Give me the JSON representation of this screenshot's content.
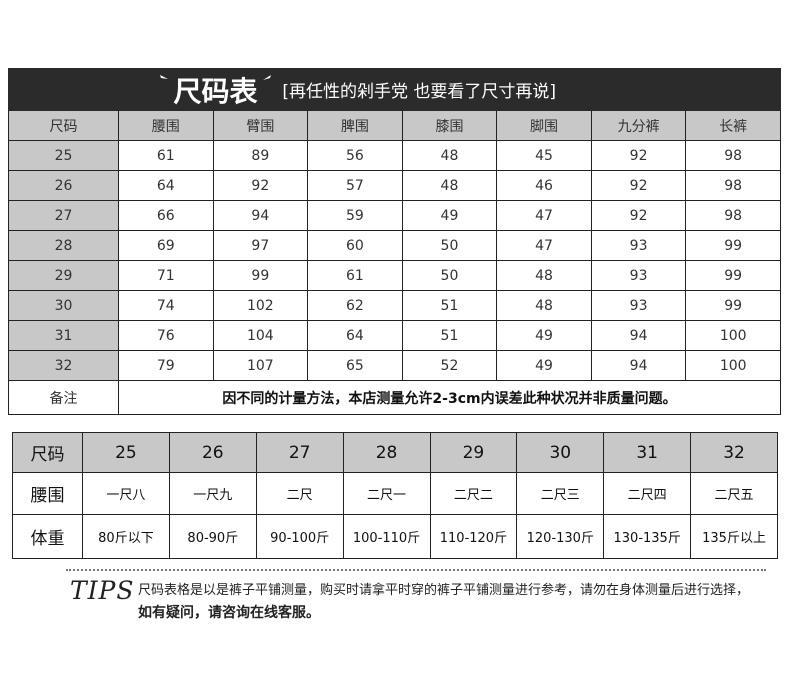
{
  "title": {
    "main": "尺码表",
    "sub": "[再任性的剁手党 也要看了尺寸再说]"
  },
  "table1": {
    "headers": [
      "尺码",
      "腰围",
      "臂围",
      "脾围",
      "膝围",
      "脚围",
      "九分裤",
      "长裤"
    ],
    "rows": [
      [
        "25",
        "61",
        "89",
        "56",
        "48",
        "45",
        "92",
        "98"
      ],
      [
        "26",
        "64",
        "92",
        "57",
        "48",
        "46",
        "92",
        "98"
      ],
      [
        "27",
        "66",
        "94",
        "59",
        "49",
        "47",
        "92",
        "98"
      ],
      [
        "28",
        "69",
        "97",
        "60",
        "50",
        "47",
        "93",
        "99"
      ],
      [
        "29",
        "71",
        "99",
        "61",
        "50",
        "48",
        "93",
        "99"
      ],
      [
        "30",
        "74",
        "102",
        "62",
        "51",
        "48",
        "93",
        "99"
      ],
      [
        "31",
        "76",
        "104",
        "64",
        "51",
        "49",
        "94",
        "100"
      ],
      [
        "32",
        "79",
        "107",
        "65",
        "52",
        "49",
        "94",
        "100"
      ]
    ],
    "note_label": "备注",
    "note": "因不同的计量方法，本店测量允许2-3cm内误差此种状况并非质量问题。"
  },
  "table2": {
    "rows": [
      [
        "尺码",
        "25",
        "26",
        "27",
        "28",
        "29",
        "30",
        "31",
        "32"
      ],
      [
        "腰围",
        "一尺八",
        "一尺九",
        "二尺",
        "二尺一",
        "二尺二",
        "二尺三",
        "二尺四",
        "二尺五"
      ],
      [
        "体重",
        "80斤以下",
        "80-90斤",
        "90-100斤",
        "100-110斤",
        "110-120斤",
        "120-130斤",
        "130-135斤",
        "135斤以上"
      ]
    ]
  },
  "tips": {
    "label": "TIPS",
    "text": "尺码表格是以是裤子平铺测量，购买时请拿平时穿的裤子平铺测量进行参考，请勿在身体测量后进行选择，",
    "bold": "如有疑问，请咨询在线客服。"
  }
}
